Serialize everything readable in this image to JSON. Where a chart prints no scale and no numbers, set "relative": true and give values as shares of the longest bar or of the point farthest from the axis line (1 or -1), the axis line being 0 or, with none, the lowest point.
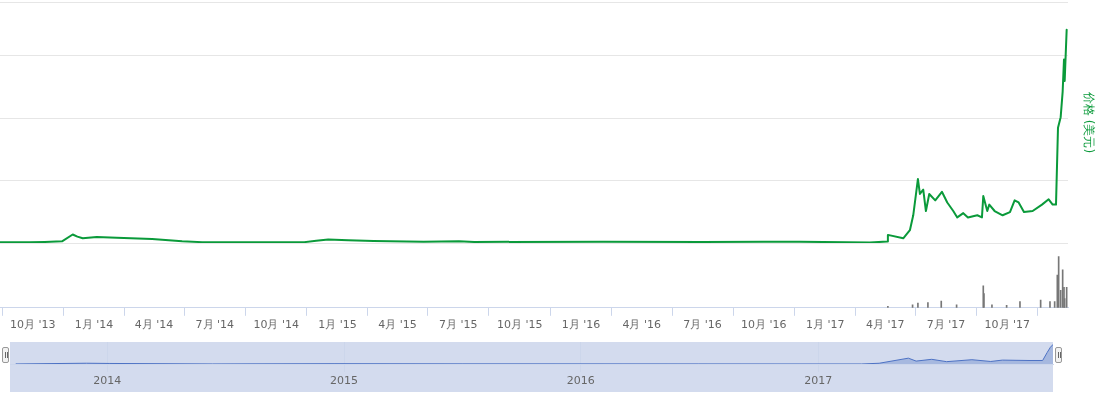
{
  "chart_data": [
    {
      "type": "line",
      "relative": true,
      "ylabel": "价格 (美元)",
      "xlim": [
        "2013-08-13",
        "2017-12-31"
      ],
      "tick_labels": false,
      "grid": "y",
      "legend": false,
      "x": [
        "2013-08-13",
        "2013-09-26",
        "2013-10-19",
        "2013-11-14",
        "2013-11-30",
        "2013-12-07",
        "2013-12-15",
        "2014-01-05",
        "2014-02-04",
        "2014-03-29",
        "2014-05-13",
        "2014-06-12",
        "2014-11-12",
        "2014-11-30",
        "2014-12-18",
        "2015-01-17",
        "2015-02-24",
        "2015-05-10",
        "2015-07-02",
        "2015-07-25",
        "2016-02-03",
        "2016-07-01",
        "2016-11-24",
        "2017-03-09",
        "2017-04-04",
        "2017-04-05",
        "2017-04-28",
        "2017-05-08",
        "2017-05-13",
        "2017-05-20",
        "2017-05-23",
        "2017-05-28",
        "2017-06-01",
        "2017-06-06",
        "2017-06-15",
        "2017-06-25",
        "2017-07-03",
        "2017-07-12",
        "2017-07-18",
        "2017-07-27",
        "2017-08-03",
        "2017-08-17",
        "2017-08-24",
        "2017-08-26",
        "2017-09-01",
        "2017-09-04",
        "2017-09-12",
        "2017-09-24",
        "2017-10-05",
        "2017-10-12",
        "2017-10-18",
        "2017-10-26",
        "2017-11-08",
        "2017-11-22",
        "2017-12-02",
        "2017-12-08",
        "2017-12-13",
        "2017-12-16",
        "2017-12-20",
        "2017-12-23",
        "2017-12-25",
        "2017-12-26",
        "2017-12-29"
      ],
      "series": [
        {
          "color": "#0a9a3a",
          "values": [
            0.003,
            0.003,
            0.005,
            0.008,
            0.04,
            0.03,
            0.022,
            0.028,
            0.025,
            0.019,
            0.008,
            0.004,
            0.004,
            0.01,
            0.016,
            0.013,
            0.009,
            0.006,
            0.008,
            0.005,
            0.006,
            0.005,
            0.006,
            0.002,
            0.007,
            0.038,
            0.022,
            0.06,
            0.13,
            0.3,
            0.23,
            0.25,
            0.15,
            0.23,
            0.2,
            0.24,
            0.19,
            0.15,
            0.12,
            0.14,
            0.12,
            0.13,
            0.12,
            0.22,
            0.15,
            0.18,
            0.15,
            0.13,
            0.145,
            0.2,
            0.19,
            0.145,
            0.15,
            0.18,
            0.205,
            0.18,
            0.18,
            0.54,
            0.59,
            0.71,
            0.86,
            0.76,
            1.0
          ]
        }
      ]
    },
    {
      "type": "bar",
      "relative": true,
      "xlim": [
        "2013-08-13",
        "2017-12-31"
      ],
      "tick_labels": "x",
      "legend": false,
      "xticks": [
        {
          "value": "2013-10-01",
          "label": "10月 '13"
        },
        {
          "value": "2014-01-01",
          "label": "1月 '14"
        },
        {
          "value": "2014-04-01",
          "label": "4月 '14"
        },
        {
          "value": "2014-07-01",
          "label": "7月 '14"
        },
        {
          "value": "2014-10-01",
          "label": "10月 '14"
        },
        {
          "value": "2015-01-01",
          "label": "1月 '15"
        },
        {
          "value": "2015-04-01",
          "label": "4月 '15"
        },
        {
          "value": "2015-07-01",
          "label": "7月 '15"
        },
        {
          "value": "2015-10-01",
          "label": "10月 '15"
        },
        {
          "value": "2016-01-01",
          "label": "1月 '16"
        },
        {
          "value": "2016-04-01",
          "label": "4月 '16"
        },
        {
          "value": "2016-07-01",
          "label": "7月 '16"
        },
        {
          "value": "2016-10-01",
          "label": "10月 '16"
        },
        {
          "value": "2017-01-01",
          "label": "1月 '17"
        },
        {
          "value": "2017-04-01",
          "label": "4月 '17"
        },
        {
          "value": "2017-07-01",
          "label": "7月 '17"
        },
        {
          "value": "2017-10-01",
          "label": "10月 '17"
        }
      ],
      "x": [
        "2017-04-05",
        "2017-05-12",
        "2017-05-20",
        "2017-06-04",
        "2017-06-24",
        "2017-07-17",
        "2017-08-26",
        "2017-08-27",
        "2017-09-08",
        "2017-09-30",
        "2017-10-20",
        "2017-11-20",
        "2017-12-04",
        "2017-12-11",
        "2017-12-15",
        "2017-12-17",
        "2017-12-20",
        "2017-12-23",
        "2017-12-25",
        "2017-12-26",
        "2017-12-29"
      ],
      "series": [
        {
          "color": "#777777",
          "values": [
            0.03,
            0.06,
            0.09,
            0.1,
            0.13,
            0.06,
            0.43,
            0.28,
            0.06,
            0.05,
            0.12,
            0.15,
            0.12,
            0.12,
            0.64,
            1.0,
            0.34,
            0.74,
            0.4,
            0.18,
            0.4
          ]
        }
      ]
    },
    {
      "type": "area",
      "relative": true,
      "xlim": [
        "2013-08-04",
        "2017-12-29"
      ],
      "tick_labels": "x",
      "grid": "x",
      "legend": false,
      "xticks": [
        {
          "value": "2014-01-01",
          "label": "2014"
        },
        {
          "value": "2015-01-01",
          "label": "2015"
        },
        {
          "value": "2016-01-01",
          "label": "2016"
        },
        {
          "value": "2017-01-01",
          "label": "2017"
        }
      ],
      "bands": [
        {
          "axis": "x",
          "from": "2013-08-04",
          "to": "2017-12-29",
          "color": "#d3dbee"
        }
      ],
      "x": [
        "2013-08-13",
        "2013-11-30",
        "2014-01-05",
        "2014-06-12",
        "2014-12-18",
        "2015-07-02",
        "2016-07-01",
        "2017-03-09",
        "2017-04-05",
        "2017-05-20",
        "2017-06-01",
        "2017-06-25",
        "2017-07-18",
        "2017-08-26",
        "2017-09-24",
        "2017-10-12",
        "2017-11-22",
        "2017-12-13",
        "2017-12-20",
        "2017-12-25",
        "2017-12-29"
      ],
      "series": [
        {
          "color": "#4d72c4",
          "values": [
            0.003,
            0.04,
            0.028,
            0.004,
            0.016,
            0.008,
            0.005,
            0.002,
            0.038,
            0.3,
            0.15,
            0.24,
            0.12,
            0.22,
            0.13,
            0.2,
            0.18,
            0.18,
            0.59,
            0.86,
            1.0
          ]
        }
      ]
    }
  ]
}
